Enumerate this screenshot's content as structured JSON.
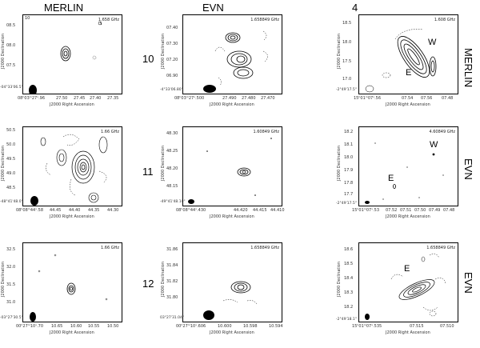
{
  "columns": [
    "MERLIN",
    "EVN",
    "4"
  ],
  "rows": [
    "10",
    "11",
    "12"
  ],
  "side_labels": [
    "MERLIN",
    "EVN",
    "EVN"
  ],
  "axis": {
    "x": "J2000 Right Ascension",
    "y": "J2000 Declination"
  },
  "panels": [
    {
      "corner": "10",
      "freq": "1.658 GHz",
      "yticks": [
        "08.5",
        "08.0",
        "07.5",
        "07.0",
        "-04°33'06.5\""
      ],
      "xticks": [
        "08ʰ03ᵐ27ˢ.96",
        "27.50",
        "27.45",
        "27.40",
        "27.35"
      ]
    },
    {
      "corner": "",
      "freq": "1.658849 GHz",
      "yticks": [
        "07.40",
        "07.40",
        "07.30",
        "07.20",
        "07.10",
        "06.90",
        "-4°33'06.80\""
      ],
      "xticks": [
        "08ʰ03ᵐ27ˢ.500",
        "27.490",
        "27.480",
        "27.470",
        "27.470"
      ]
    },
    {
      "corner": "",
      "freq": "1.608 GHz",
      "yticks": [
        "18.5",
        "18.0",
        "17.5",
        "17.0",
        "-2°49'17.5\""
      ],
      "xticks": [
        "15ʰ01ᵐ07ˢ.56",
        "07.54",
        "07.56",
        "07.48"
      ],
      "labels": [
        "W",
        "E"
      ]
    },
    {
      "corner": "",
      "freq": "1.66 GHz",
      "yticks": [
        "50.5",
        "50.0",
        "49.5",
        "49.0",
        "48.5",
        "48.0",
        "-48°41'48.0\""
      ],
      "xticks": [
        "08ʰ08ᵐ44ˢ.58",
        "44.45",
        "44.40",
        "44.35",
        "44.30"
      ]
    },
    {
      "corner": "",
      "freq": "1.60849 GHz",
      "yticks": [
        "48.30",
        "48.25",
        "48.20",
        "48.15",
        "48.10",
        "-49°41'48.10\""
      ],
      "xticks": [
        "08ʰ08ᵐ44ˢ.430",
        "44.420",
        "44.415",
        "44.410"
      ]
    },
    {
      "corner": "",
      "freq": "4.60849 GHz",
      "yticks": [
        "18.2",
        "18.1",
        "18.0",
        "17.9",
        "17.8",
        "17.7",
        "17.6",
        "-2°49'17.5\""
      ],
      "xticks": [
        "15ʰ01ᵐ07ˢ.53",
        "07.52",
        "07.51",
        "07.50",
        "07.49",
        "07.48",
        "07.47"
      ],
      "labels": [
        "W",
        "E"
      ]
    },
    {
      "corner": "",
      "freq": "1.66 GHz",
      "yticks": [
        "32.5",
        "32.0",
        "31.5",
        "31.0",
        "30.5",
        "-03°27'30.5\""
      ],
      "xticks": [
        "00ʰ27ᵐ10ˢ.70",
        "10.65",
        "10.60",
        "10.55",
        "10.50"
      ]
    },
    {
      "corner": "",
      "freq": "1.658849 GHz",
      "yticks": [
        "31.86",
        "31.84",
        "31.82",
        "31.80",
        "31.78",
        "03°27'31.04\""
      ],
      "xticks": [
        "00ʰ27ᵐ10ˢ.606",
        "10.600",
        "10.598",
        "10.594"
      ]
    },
    {
      "corner": "",
      "freq": "1.658849 GHz",
      "yticks": [
        "18.6",
        "18.5",
        "18.4",
        "18.3",
        "18.2",
        "-2°49'18.1\""
      ],
      "xticks": [
        "15ʰ01ᵐ07ˢ.535",
        "07.515",
        "07.510"
      ],
      "labels": [
        "E"
      ]
    }
  ]
}
